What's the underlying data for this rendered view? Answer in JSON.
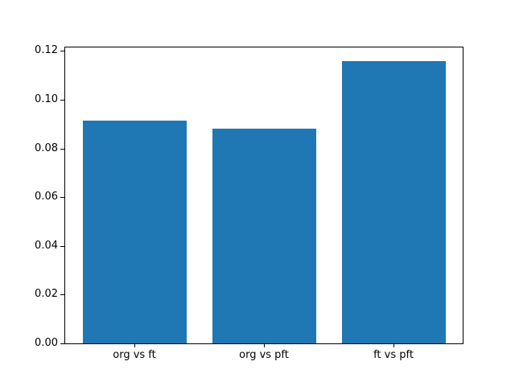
{
  "figure": {
    "background_color": "#ffffff",
    "text_color": "#000000"
  },
  "chart_data": {
    "type": "bar",
    "title": "",
    "xlabel": "",
    "ylabel": "",
    "categories": [
      "org vs ft",
      "org vs pft",
      "ft vs pft"
    ],
    "values": [
      0.0915,
      0.088,
      0.116
    ],
    "bar_color": "#1f77b4",
    "ylim": [
      0,
      0.1218
    ],
    "yticks": [
      0,
      0.02,
      0.04,
      0.06,
      0.08,
      0.1,
      0.12
    ],
    "ytick_labels": [
      "0.00",
      "0.02",
      "0.04",
      "0.06",
      "0.08",
      "0.10",
      "0.12"
    ],
    "grid": false,
    "legend": "none"
  }
}
